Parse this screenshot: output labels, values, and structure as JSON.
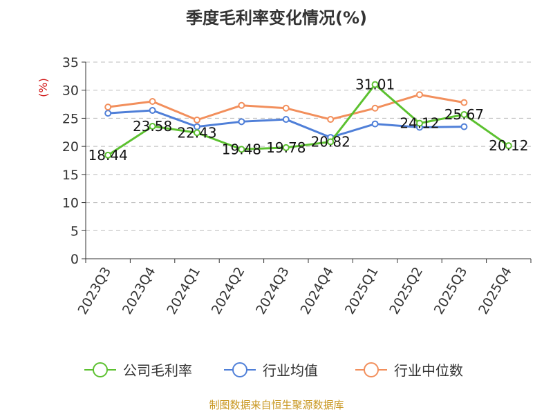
{
  "chart_data": {
    "type": "line",
    "title": "季度毛利率变化情况(%)",
    "ylabel": "(%)",
    "xlabel": "",
    "categories": [
      "2023Q3",
      "2023Q4",
      "2024Q1",
      "2024Q2",
      "2024Q3",
      "2024Q4",
      "2025Q1",
      "2025Q2",
      "2025Q3",
      "2025Q4"
    ],
    "ylim": [
      0,
      35
    ],
    "yticks": [
      0,
      5,
      10,
      15,
      20,
      25,
      30,
      35
    ],
    "grid": true,
    "legend_position": "bottom",
    "series": [
      {
        "name": "公司毛利率",
        "color": "#5cc130",
        "show_labels": true,
        "values": [
          18.44,
          23.58,
          22.43,
          19.48,
          19.78,
          20.82,
          31.01,
          24.12,
          25.67,
          20.12
        ]
      },
      {
        "name": "行业均值",
        "color": "#4f7fd8",
        "show_labels": false,
        "values": [
          25.9,
          26.4,
          23.5,
          24.4,
          24.8,
          21.6,
          24.0,
          23.4,
          23.5,
          null
        ]
      },
      {
        "name": "行业中位数",
        "color": "#f28f5c",
        "show_labels": false,
        "values": [
          27.0,
          28.0,
          24.7,
          27.3,
          26.8,
          24.8,
          26.8,
          29.2,
          27.8,
          null
        ]
      }
    ]
  },
  "source_text": "制图数据来自恒生聚源数据库"
}
